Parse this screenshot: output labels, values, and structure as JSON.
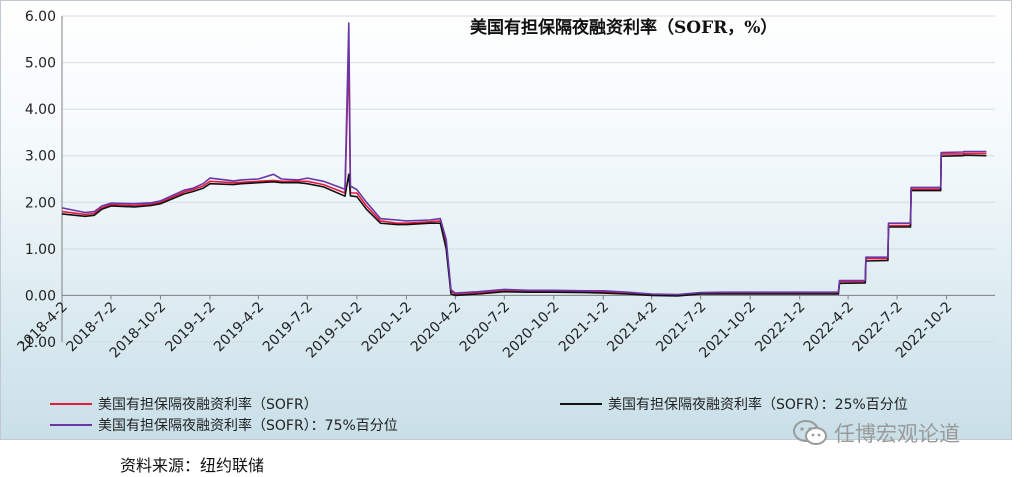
{
  "title": "美国有担保隔夜融资利率（SOFR，%）",
  "source_note": "资料来源：纽约联储",
  "watermark": "任博宏观论道",
  "watermark_icon": "wechat-icon",
  "chart_data": {
    "type": "line",
    "title": "美国有担保隔夜融资利率（SOFR，%）",
    "xlabel": "",
    "ylabel": "",
    "ylim": [
      -1.0,
      6.0
    ],
    "yticks": [
      "6.00",
      "5.00",
      "4.00",
      "3.00",
      "2.00",
      "1.00",
      "0.00",
      "-1.00"
    ],
    "grid": true,
    "legend_position": "bottom",
    "x_tick_labels": [
      "2018-4-2",
      "2018-7-2",
      "2018-10-2",
      "2019-1-2",
      "2019-4-2",
      "2019-7-2",
      "2019-10-2",
      "2020-1-2",
      "2020-4-2",
      "2020-7-2",
      "2020-10-2",
      "2021-1-2",
      "2021-4-2",
      "2021-7-2",
      "2021-10-2",
      "2022-1-2",
      "2022-4-2",
      "2022-7-2",
      "2022-10-2"
    ],
    "x": [
      "2018-4-2",
      "2018-5-15",
      "2018-6-1",
      "2018-6-15",
      "2018-7-2",
      "2018-8-15",
      "2018-9-15",
      "2018-10-2",
      "2018-11-15",
      "2018-12-1",
      "2018-12-20",
      "2019-1-2",
      "2019-2-15",
      "2019-3-1",
      "2019-4-2",
      "2019-4-30",
      "2019-5-15",
      "2019-6-15",
      "2019-7-2",
      "2019-8-1",
      "2019-9-10",
      "2019-9-17",
      "2019-9-20",
      "2019-10-2",
      "2019-10-20",
      "2019-11-15",
      "2019-12-15",
      "2020-1-2",
      "2020-2-15",
      "2020-3-5",
      "2020-3-16",
      "2020-3-25",
      "2020-4-2",
      "2020-5-15",
      "2020-7-2",
      "2020-8-15",
      "2020-10-2",
      "2020-12-1",
      "2021-1-2",
      "2021-2-15",
      "2021-4-2",
      "2021-5-20",
      "2021-7-2",
      "2021-8-15",
      "2021-10-2",
      "2021-12-1",
      "2022-1-2",
      "2022-3-15",
      "2022-3-17",
      "2022-5-4",
      "2022-5-5",
      "2022-6-15",
      "2022-6-16",
      "2022-7-27",
      "2022-7-28",
      "2022-9-21",
      "2022-9-22",
      "2022-11-2",
      "2022-11-3",
      "2022-12-15"
    ],
    "series": [
      {
        "name": "美国有担保隔夜融资利率（SOFR）",
        "color": "#e8193c",
        "values": [
          1.8,
          1.74,
          1.76,
          1.88,
          1.95,
          1.93,
          1.96,
          2.0,
          2.22,
          2.27,
          2.35,
          2.45,
          2.42,
          2.43,
          2.45,
          2.47,
          2.45,
          2.45,
          2.45,
          2.38,
          2.2,
          5.25,
          2.2,
          2.2,
          1.92,
          1.6,
          1.55,
          1.55,
          1.58,
          1.6,
          1.1,
          0.1,
          0.02,
          0.05,
          0.1,
          0.09,
          0.09,
          0.08,
          0.08,
          0.05,
          0.01,
          0.01,
          0.05,
          0.05,
          0.05,
          0.05,
          0.05,
          0.05,
          0.3,
          0.3,
          0.79,
          0.79,
          1.5,
          1.5,
          2.28,
          2.28,
          3.04,
          3.04,
          3.05,
          3.05
        ]
      },
      {
        "name": "美国有担保隔夜融资利率（SOFR）：25%百分位",
        "color": "#111111",
        "values": [
          1.75,
          1.7,
          1.72,
          1.85,
          1.92,
          1.9,
          1.93,
          1.97,
          2.18,
          2.23,
          2.3,
          2.4,
          2.38,
          2.4,
          2.42,
          2.44,
          2.42,
          2.42,
          2.4,
          2.33,
          2.13,
          2.6,
          2.14,
          2.12,
          1.85,
          1.55,
          1.52,
          1.52,
          1.55,
          1.55,
          1.0,
          0.03,
          0.0,
          0.03,
          0.08,
          0.07,
          0.07,
          0.06,
          0.05,
          0.03,
          0.0,
          -0.01,
          0.03,
          0.03,
          0.03,
          0.03,
          0.03,
          0.03,
          0.26,
          0.27,
          0.74,
          0.75,
          1.47,
          1.47,
          2.25,
          2.25,
          2.99,
          3.0,
          3.01,
          3.0
        ]
      },
      {
        "name": "美国有担保隔夜融资利率（SOFR）：75%百分位",
        "color": "#6a36a8",
        "values": [
          1.88,
          1.78,
          1.8,
          1.92,
          1.98,
          1.97,
          1.99,
          2.03,
          2.26,
          2.3,
          2.4,
          2.52,
          2.46,
          2.48,
          2.5,
          2.6,
          2.5,
          2.48,
          2.52,
          2.45,
          2.28,
          5.85,
          2.35,
          2.27,
          2.0,
          1.65,
          1.62,
          1.6,
          1.62,
          1.65,
          1.2,
          0.12,
          0.05,
          0.08,
          0.13,
          0.11,
          0.11,
          0.1,
          0.1,
          0.07,
          0.03,
          0.02,
          0.06,
          0.07,
          0.07,
          0.07,
          0.07,
          0.07,
          0.32,
          0.32,
          0.82,
          0.82,
          1.55,
          1.55,
          2.32,
          2.32,
          3.07,
          3.08,
          3.09,
          3.09
        ]
      }
    ]
  }
}
